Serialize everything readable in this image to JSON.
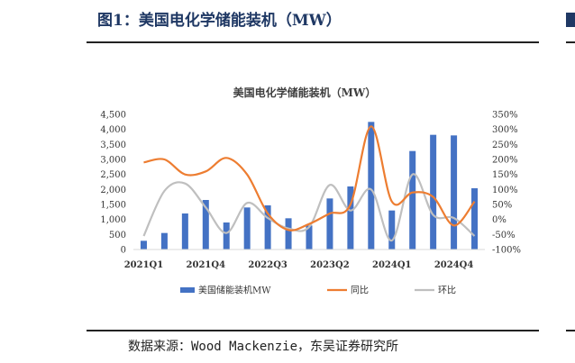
{
  "figure": {
    "title": "图1：美国电化学储能装机（MW）",
    "source": "数据来源：Wood Mackenzie，东吴证券研究所"
  },
  "colors": {
    "bar": "#4472c4",
    "yoy": "#ed7d31",
    "qoq": "#bfbfbf",
    "title": "#1f3864"
  },
  "chart_data": {
    "type": "bar",
    "title": "美国电化学储能装机（MW）",
    "categories": [
      "2021Q1",
      "2021Q2",
      "2021Q3",
      "2021Q4",
      "2022Q1",
      "2022Q2",
      "2022Q3",
      "2022Q4",
      "2023Q1",
      "2023Q2",
      "2023Q3",
      "2023Q4",
      "2024Q1",
      "2024Q2",
      "2024Q3",
      "2024Q4",
      "2025Q1"
    ],
    "x_tick_labels": [
      {
        "index": 0,
        "label": "2021Q1"
      },
      {
        "index": 3,
        "label": "2021Q4"
      },
      {
        "index": 6,
        "label": "2022Q3"
      },
      {
        "index": 9,
        "label": "2023Q2"
      },
      {
        "index": 12,
        "label": "2024Q1"
      },
      {
        "index": 15,
        "label": "2024Q4"
      }
    ],
    "series": [
      {
        "name": "美国储能装机MW",
        "type": "bar",
        "axis": "left",
        "values": [
          290,
          550,
          1200,
          1650,
          900,
          1400,
          1470,
          1040,
          800,
          1700,
          2100,
          4250,
          1300,
          3280,
          3820,
          3800,
          2040
        ]
      },
      {
        "name": "同比",
        "type": "line",
        "axis": "right",
        "values": [
          190,
          200,
          150,
          160,
          205,
          150,
          20,
          -35,
          -15,
          20,
          50,
          310,
          60,
          90,
          75,
          -20,
          60
        ]
      },
      {
        "name": "环比",
        "type": "line",
        "axis": "right",
        "values": [
          -55,
          95,
          120,
          40,
          -45,
          55,
          5,
          -30,
          -25,
          115,
          30,
          100,
          -70,
          150,
          15,
          5,
          -55
        ]
      }
    ],
    "y_left": {
      "min": 0,
      "max": 4500,
      "step": 500
    },
    "y_right": {
      "min": -100,
      "max": 350,
      "step": 50
    },
    "y_left_ticks": [
      "0",
      "500",
      "1,000",
      "1,500",
      "2,000",
      "2,500",
      "3,000",
      "3,500",
      "4,000",
      "4,500"
    ],
    "y_right_ticks": [
      "-100%",
      "-50%",
      "0%",
      "50%",
      "100%",
      "150%",
      "200%",
      "250%",
      "300%",
      "350%"
    ],
    "legend_position": "bottom",
    "grid": false
  }
}
